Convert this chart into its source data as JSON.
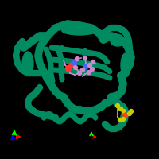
{
  "background_color": "#000000",
  "protein_color": "#008B60",
  "ligand_color": "#CC88CC",
  "small_molecule_color": "#CCCC00",
  "axis_colors": {
    "x": "#FF0000",
    "y": "#00FF00",
    "z": "#0000FF"
  },
  "figsize": [
    2.0,
    2.0
  ],
  "dpi": 100
}
